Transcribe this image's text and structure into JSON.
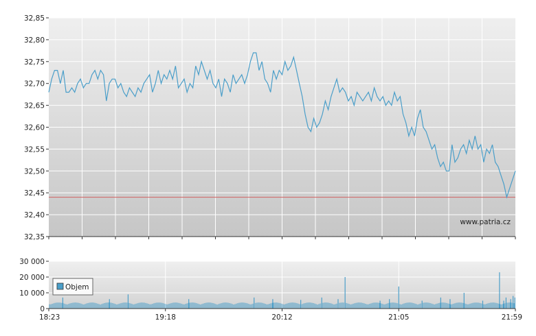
{
  "watermark": "www.patria.cz",
  "legend_label": "Objem",
  "chart_data": [
    {
      "type": "line",
      "title": "",
      "ylim": [
        32.35,
        32.85
      ],
      "y_ticks": [
        "32,85",
        "32,80",
        "32,75",
        "32,70",
        "32,65",
        "32,60",
        "32,55",
        "32,50",
        "32,45",
        "32,40",
        "32,35"
      ],
      "y_tick_values": [
        32.85,
        32.8,
        32.75,
        32.7,
        32.65,
        32.6,
        32.55,
        32.5,
        32.45,
        32.4,
        32.35
      ],
      "reference_line": 32.44,
      "x_range": [
        "18:23",
        "21:59"
      ],
      "series": [
        {
          "color": "#4a9ec9",
          "values": [
            32.68,
            32.71,
            32.73,
            32.73,
            32.7,
            32.73,
            32.68,
            32.68,
            32.69,
            32.68,
            32.7,
            32.71,
            32.69,
            32.7,
            32.7,
            32.72,
            32.73,
            32.71,
            32.73,
            32.72,
            32.66,
            32.7,
            32.71,
            32.71,
            32.69,
            32.7,
            32.68,
            32.67,
            32.69,
            32.68,
            32.67,
            32.69,
            32.68,
            32.7,
            32.71,
            32.72,
            32.68,
            32.7,
            32.73,
            32.7,
            32.72,
            32.71,
            32.73,
            32.71,
            32.74,
            32.69,
            32.7,
            32.71,
            32.68,
            32.7,
            32.69,
            32.74,
            32.72,
            32.75,
            32.73,
            32.71,
            32.73,
            32.7,
            32.69,
            32.71,
            32.67,
            32.71,
            32.7,
            32.68,
            32.72,
            32.7,
            32.71,
            32.72,
            32.7,
            32.72,
            32.75,
            32.77,
            32.77,
            32.73,
            32.75,
            32.71,
            32.7,
            32.68,
            32.73,
            32.71,
            32.73,
            32.72,
            32.75,
            32.73,
            32.74,
            32.76,
            32.73,
            32.7,
            32.67,
            32.63,
            32.6,
            32.59,
            32.62,
            32.6,
            32.61,
            32.63,
            32.66,
            32.64,
            32.67,
            32.69,
            32.71,
            32.68,
            32.69,
            32.68,
            32.66,
            32.67,
            32.65,
            32.68,
            32.67,
            32.66,
            32.67,
            32.68,
            32.66,
            32.69,
            32.67,
            32.66,
            32.67,
            32.65,
            32.66,
            32.65,
            32.68,
            32.66,
            32.67,
            32.63,
            32.61,
            32.58,
            32.6,
            32.58,
            32.62,
            32.64,
            32.6,
            32.59,
            32.57,
            32.55,
            32.56,
            32.53,
            32.51,
            32.52,
            32.5,
            32.5,
            32.56,
            32.52,
            32.53,
            32.55,
            32.56,
            32.54,
            32.57,
            32.55,
            32.58,
            32.55,
            32.56,
            32.52,
            32.55,
            32.54,
            32.56,
            32.52,
            32.51,
            32.49,
            32.47,
            32.44,
            32.46,
            32.48,
            32.5
          ]
        }
      ]
    },
    {
      "type": "bar",
      "series_name": "Objem",
      "ylim": [
        0,
        30000
      ],
      "y_ticks": [
        "30 000",
        "20 000",
        "10 000",
        "0"
      ],
      "y_tick_values": [
        30000,
        20000,
        10000,
        0
      ],
      "x_ticks": [
        "18:23",
        "19:18",
        "20:12",
        "21:05",
        "21:59"
      ],
      "base_volume": 3200,
      "spikes": [
        {
          "t": 0.03,
          "v": 7000
        },
        {
          "t": 0.13,
          "v": 6000
        },
        {
          "t": 0.17,
          "v": 9000
        },
        {
          "t": 0.3,
          "v": 6000
        },
        {
          "t": 0.44,
          "v": 7000
        },
        {
          "t": 0.48,
          "v": 6000
        },
        {
          "t": 0.54,
          "v": 5500
        },
        {
          "t": 0.585,
          "v": 7000
        },
        {
          "t": 0.62,
          "v": 6000
        },
        {
          "t": 0.635,
          "v": 20000
        },
        {
          "t": 0.71,
          "v": 5000
        },
        {
          "t": 0.73,
          "v": 6000
        },
        {
          "t": 0.75,
          "v": 14000
        },
        {
          "t": 0.8,
          "v": 5000
        },
        {
          "t": 0.84,
          "v": 7000
        },
        {
          "t": 0.86,
          "v": 6000
        },
        {
          "t": 0.89,
          "v": 10000
        },
        {
          "t": 0.93,
          "v": 5000
        },
        {
          "t": 0.966,
          "v": 23000
        },
        {
          "t": 0.975,
          "v": 5000
        },
        {
          "t": 0.98,
          "v": 7000
        },
        {
          "t": 0.99,
          "v": 6000
        },
        {
          "t": 0.995,
          "v": 8000
        },
        {
          "t": 0.999,
          "v": 7000
        }
      ]
    }
  ]
}
